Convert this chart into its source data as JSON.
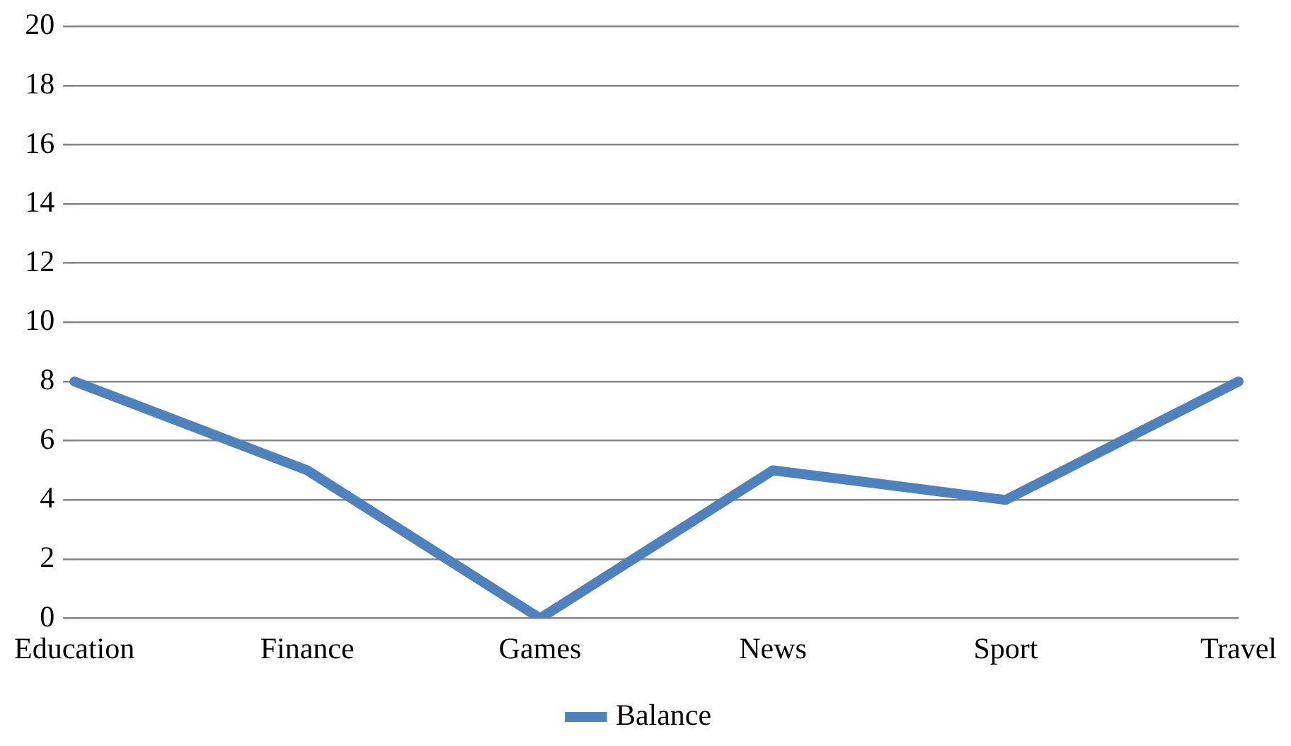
{
  "chart_data": {
    "type": "line",
    "categories": [
      "Education",
      "Finance",
      "Games",
      "News",
      "Sport",
      "Travel"
    ],
    "series": [
      {
        "name": "Balance",
        "color": "#4f81bd",
        "values": [
          8,
          5,
          0,
          5,
          4,
          8
        ]
      }
    ],
    "ylim": [
      0,
      20
    ],
    "yticks": [
      0,
      2,
      4,
      6,
      8,
      10,
      12,
      14,
      16,
      18,
      20
    ],
    "grid": "y",
    "legend": "bottom",
    "marker": "none",
    "line_style": "solid"
  }
}
